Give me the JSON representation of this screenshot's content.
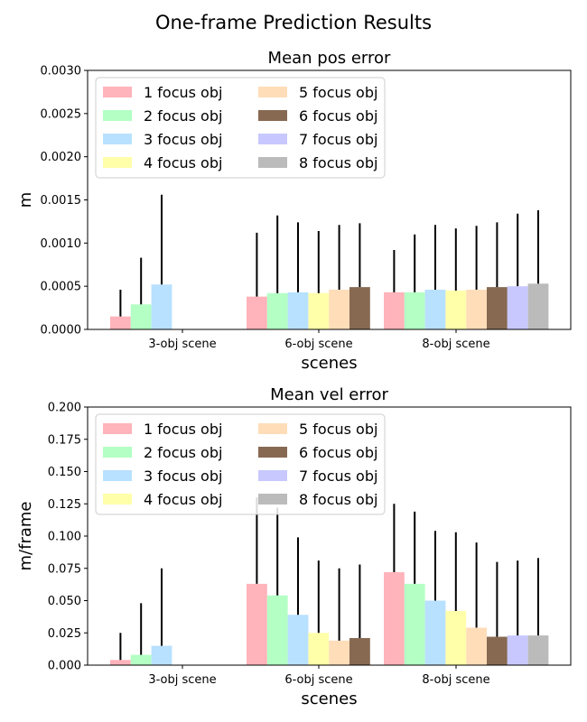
{
  "figure": {
    "suptitle": "One-frame Prediction Results"
  },
  "chart_data": [
    {
      "type": "bar",
      "title": "Mean pos error",
      "xlabel": "scenes",
      "ylabel": "m",
      "ylim": [
        0,
        0.003
      ],
      "yticks": [
        0,
        0.0005,
        0.001,
        0.0015,
        0.002,
        0.0025,
        0.003
      ],
      "ytick_labels": [
        "0.0000",
        "0.0005",
        "0.0010",
        "0.0015",
        "0.0020",
        "0.0025",
        "0.0030"
      ],
      "categories": [
        "3-obj scene",
        "6-obj scene",
        "8-obj scene"
      ],
      "legend_position": "top-left",
      "series": [
        {
          "name": "1 focus obj",
          "color": "#ffb3ba",
          "values": [
            0.00015,
            0.00038,
            0.00043
          ],
          "errors": [
            0.00031,
            0.00074,
            0.00049
          ]
        },
        {
          "name": "2 focus obj",
          "color": "#b3ffc4",
          "values": [
            0.00029,
            0.00042,
            0.00043
          ],
          "errors": [
            0.00054,
            0.0009,
            0.00067
          ]
        },
        {
          "name": "3 focus obj",
          "color": "#b8e0ff",
          "values": [
            0.00052,
            0.00043,
            0.00046
          ],
          "errors": [
            0.00104,
            0.00081,
            0.00075
          ]
        },
        {
          "name": "4 focus obj",
          "color": "#ffffaa",
          "values": [
            null,
            0.00042,
            0.00045
          ],
          "errors": [
            null,
            0.00072,
            0.00072
          ]
        },
        {
          "name": "5 focus obj",
          "color": "#ffddb8",
          "values": [
            null,
            0.00046,
            0.00046
          ],
          "errors": [
            null,
            0.00075,
            0.00074
          ]
        },
        {
          "name": "6 focus obj",
          "color": "#876952",
          "values": [
            null,
            0.00049,
            0.00049
          ],
          "errors": [
            null,
            0.00074,
            0.00075
          ]
        },
        {
          "name": "7 focus obj",
          "color": "#c8c8ff",
          "values": [
            null,
            null,
            0.0005
          ],
          "errors": [
            null,
            null,
            0.00084
          ]
        },
        {
          "name": "8 focus obj",
          "color": "#bbbbbb",
          "values": [
            null,
            null,
            0.00053
          ],
          "errors": [
            null,
            null,
            0.00085
          ]
        }
      ]
    },
    {
      "type": "bar",
      "title": "Mean vel error",
      "xlabel": "scenes",
      "ylabel": "m/frame",
      "ylim": [
        0,
        0.2
      ],
      "yticks": [
        0,
        0.025,
        0.05,
        0.075,
        0.1,
        0.125,
        0.15,
        0.175,
        0.2
      ],
      "ytick_labels": [
        "0.000",
        "0.025",
        "0.050",
        "0.075",
        "0.100",
        "0.125",
        "0.150",
        "0.175",
        "0.200"
      ],
      "categories": [
        "3-obj scene",
        "6-obj scene",
        "8-obj scene"
      ],
      "legend_position": "top-left",
      "series": [
        {
          "name": "1 focus obj",
          "color": "#ffb3ba",
          "values": [
            0.004,
            0.063,
            0.072
          ],
          "errors": [
            0.021,
            0.067,
            0.053
          ]
        },
        {
          "name": "2 focus obj",
          "color": "#b3ffc4",
          "values": [
            0.008,
            0.054,
            0.063
          ],
          "errors": [
            0.04,
            0.068,
            0.056
          ]
        },
        {
          "name": "3 focus obj",
          "color": "#b8e0ff",
          "values": [
            0.015,
            0.039,
            0.05
          ],
          "errors": [
            0.06,
            0.06,
            0.054
          ]
        },
        {
          "name": "4 focus obj",
          "color": "#ffffaa",
          "values": [
            null,
            0.025,
            0.042
          ],
          "errors": [
            null,
            0.056,
            0.061
          ]
        },
        {
          "name": "5 focus obj",
          "color": "#ffddb8",
          "values": [
            null,
            0.019,
            0.029
          ],
          "errors": [
            null,
            0.056,
            0.066
          ]
        },
        {
          "name": "6 focus obj",
          "color": "#876952",
          "values": [
            null,
            0.021,
            0.022
          ],
          "errors": [
            null,
            0.057,
            0.058
          ]
        },
        {
          "name": "7 focus obj",
          "color": "#c8c8ff",
          "values": [
            null,
            null,
            0.023
          ],
          "errors": [
            null,
            null,
            0.058
          ]
        },
        {
          "name": "8 focus obj",
          "color": "#bbbbbb",
          "values": [
            null,
            null,
            0.023
          ],
          "errors": [
            null,
            null,
            0.06
          ]
        }
      ]
    }
  ]
}
